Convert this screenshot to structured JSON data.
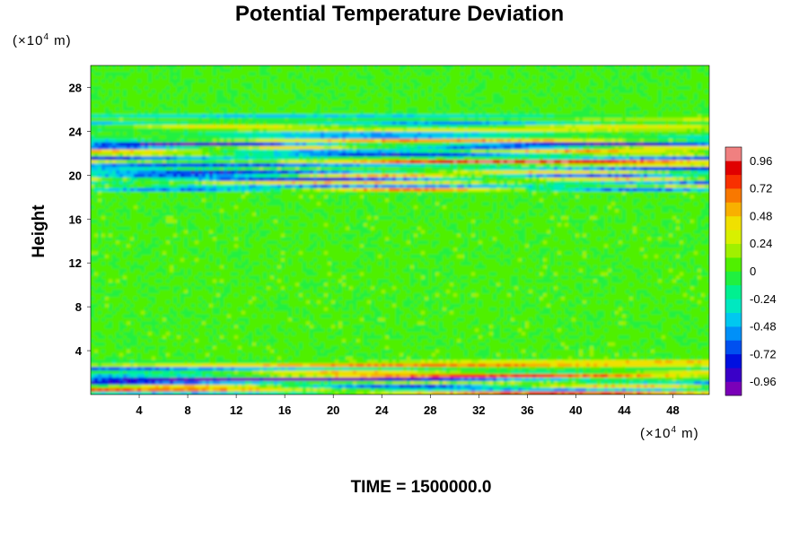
{
  "chart_data": {
    "type": "heatmap",
    "title": "Potential Temperature Deviation",
    "ylabel": "Height",
    "y_unit_prefix": "(×10",
    "y_unit_exp": "4",
    "y_unit_suffix": " m)",
    "x_unit_prefix": "(×10",
    "x_unit_exp": "4",
    "x_unit_suffix": " m)",
    "footer": "TIME = 1500000.0",
    "xlim": [
      0,
      51
    ],
    "ylim": [
      0,
      30
    ],
    "x_ticks": [
      4,
      8,
      12,
      16,
      20,
      24,
      28,
      32,
      36,
      40,
      44,
      48
    ],
    "y_ticks": [
      4,
      8,
      12,
      16,
      20,
      24,
      28
    ],
    "colorbar": {
      "range": [
        -1.08,
        1.08
      ],
      "ticks": [
        0.96,
        0.72,
        0.48,
        0.24,
        0,
        -0.24,
        -0.48,
        -0.72,
        -0.96
      ],
      "tick_labels": [
        "0.96",
        "0.72",
        "0.48",
        "0.24",
        "0",
        "-0.24",
        "-0.48",
        "-0.72",
        "-0.96"
      ],
      "colors": [
        "#7a00b8",
        "#3a00c8",
        "#0010e0",
        "#0050f0",
        "#0090f8",
        "#00c8f0",
        "#00e8c0",
        "#00f090",
        "#20f040",
        "#50f000",
        "#a0f000",
        "#d8f000",
        "#f0e000",
        "#f8b000",
        "#f87800",
        "#f83000",
        "#e00000",
        "#f08080"
      ]
    },
    "field_bands": [
      {
        "y_range": [
          0,
          1.8
        ],
        "description": "strong positive/negative alternating"
      },
      {
        "y_range": [
          1.8,
          3.2
        ],
        "description": "moderate alternating"
      },
      {
        "y_range": [
          3.2,
          18.5
        ],
        "description": "near zero"
      },
      {
        "y_range": [
          18.5,
          23.5
        ],
        "description": "strong positive/negative alternating"
      },
      {
        "y_range": [
          23.5,
          25.5
        ],
        "description": "moderate alternating"
      },
      {
        "y_range": [
          25.5,
          30
        ],
        "description": "near zero"
      }
    ]
  }
}
